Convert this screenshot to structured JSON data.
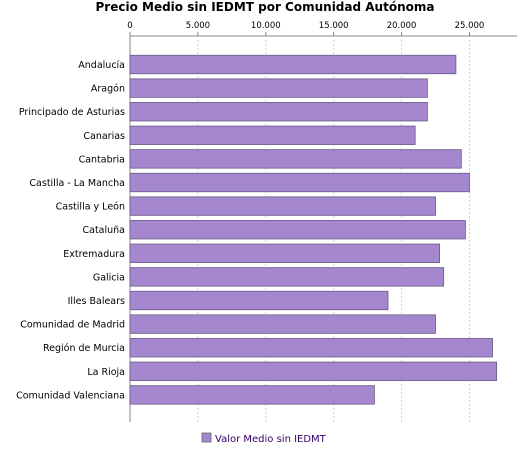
{
  "chart_data": {
    "type": "bar",
    "orientation": "horizontal",
    "title": "Precio Medio sin IEDMT por Comunidad Autónoma",
    "categories": [
      "Andalucía",
      "Aragón",
      "Principado de Asturias",
      "Canarias",
      "Cantabria",
      "Castilla - La Mancha",
      "Castilla y León",
      "Cataluña",
      "Extremadura",
      "Galicia",
      "Illes Balears",
      "Comunidad de Madrid",
      "Región de Murcia",
      "La Rioja",
      "Comunidad Valenciana"
    ],
    "series": [
      {
        "name": "Valor Medio sin IEDMT",
        "color": "#a487cf",
        "values": [
          24000,
          21900,
          21900,
          21000,
          24400,
          25000,
          22500,
          24700,
          22800,
          23100,
          19000,
          22500,
          26700,
          27000,
          18000
        ]
      }
    ],
    "x_ticks": [
      "0",
      "5.000",
      "10.000",
      "15.000",
      "20.000",
      "25.000"
    ],
    "x_tick_values": [
      0,
      5000,
      10000,
      15000,
      20000,
      25000
    ],
    "xlim": [
      0,
      28500
    ],
    "xaxis_position": "top",
    "grid": true,
    "legend_position": "bottom-center"
  }
}
